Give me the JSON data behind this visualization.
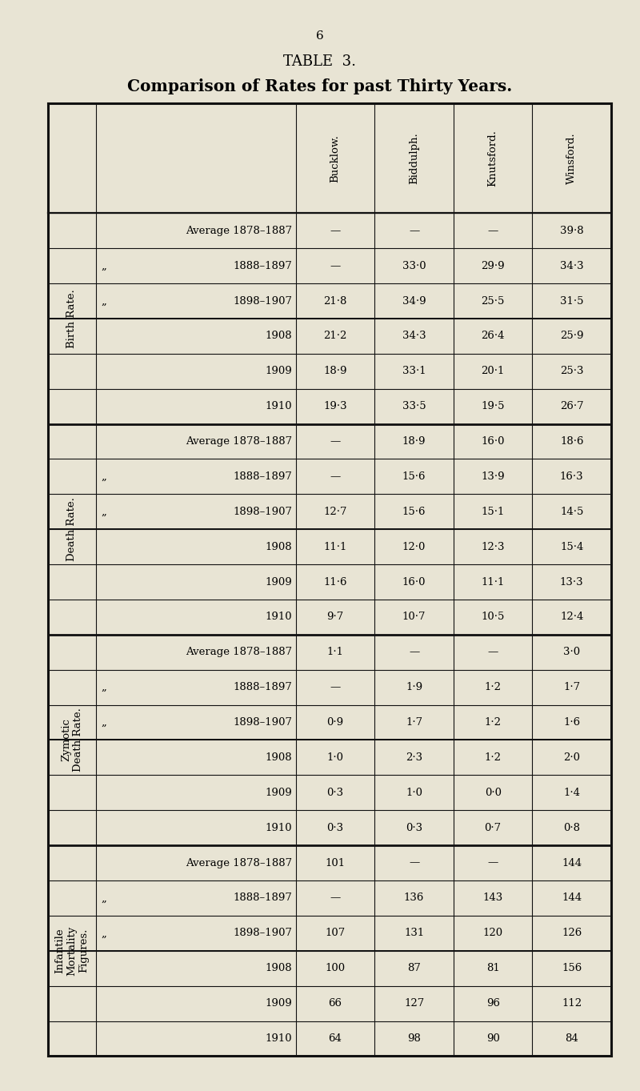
{
  "page_number": "6",
  "table_title": "TABLE  3.",
  "table_subtitle": "Comparison of Rates for past Thirty Years.",
  "bg_color": "#e8e4d4",
  "table_bg": "#f5f2e8",
  "col_headers": [
    "Bucklow.",
    "Biddulph.",
    "Knutsford.",
    "Winsford."
  ],
  "row_sections": [
    {
      "section_label": "Birth Rate.",
      "subsections": [
        {
          "label": "Average 1878–1887",
          "prefix": "",
          "values": [
            "—",
            "—",
            "—",
            "39·8"
          ]
        },
        {
          "label": "1888–1897",
          "prefix": "„",
          "values": [
            "—",
            "33·0",
            "29·9",
            "34·3"
          ]
        },
        {
          "label": "1898–1907",
          "prefix": "„",
          "values": [
            "21·8",
            "34·9",
            "25·5",
            "31·5"
          ]
        }
      ],
      "year_rows": [
        {
          "label": "1908",
          "values": [
            "21·2",
            "34·3",
            "26·4",
            "25·9"
          ]
        },
        {
          "label": "1909",
          "values": [
            "18·9",
            "33·1",
            "20·1",
            "25·3"
          ]
        },
        {
          "label": "1910",
          "values": [
            "19·3",
            "33·5",
            "19·5",
            "26·7"
          ]
        }
      ]
    },
    {
      "section_label": "Death Rate.",
      "subsections": [
        {
          "label": "Average 1878–1887",
          "prefix": "",
          "values": [
            "—",
            "18·9",
            "16·0",
            "18·6"
          ]
        },
        {
          "label": "1888–1897",
          "prefix": "„",
          "values": [
            "—",
            "15·6",
            "13·9",
            "16·3"
          ]
        },
        {
          "label": "1898–1907",
          "prefix": "„",
          "values": [
            "12·7",
            "15·6",
            "15·1",
            "14·5"
          ]
        }
      ],
      "year_rows": [
        {
          "label": "1908",
          "values": [
            "11·1",
            "12·0",
            "12·3",
            "15·4"
          ]
        },
        {
          "label": "1909",
          "values": [
            "11·6",
            "16·0",
            "11·1",
            "13·3"
          ]
        },
        {
          "label": "1910",
          "values": [
            "9·7",
            "10·7",
            "10·5",
            "12·4"
          ]
        }
      ]
    },
    {
      "section_label": "Zymotic\nDeath Rate.",
      "subsections": [
        {
          "label": "Average 1878–1887",
          "prefix": "",
          "values": [
            "1·1",
            "—",
            "—",
            "3·0"
          ]
        },
        {
          "label": "1888–1897",
          "prefix": "„",
          "values": [
            "—",
            "1·9",
            "1·2",
            "1·7"
          ]
        },
        {
          "label": "1898–1907",
          "prefix": "„",
          "values": [
            "0·9",
            "1·7",
            "1·2",
            "1·6"
          ]
        }
      ],
      "year_rows": [
        {
          "label": "1908",
          "values": [
            "1·0",
            "2·3",
            "1·2",
            "2·0"
          ]
        },
        {
          "label": "1909",
          "values": [
            "0·3",
            "1·0",
            "0·0",
            "1·4"
          ]
        },
        {
          "label": "1910",
          "values": [
            "0·3",
            "0·3",
            "0·7",
            "0·8"
          ]
        }
      ]
    },
    {
      "section_label": "Infantile\nMortality\nFigures.",
      "subsections": [
        {
          "label": "Average 1878–1887",
          "prefix": "",
          "values": [
            "101",
            "—",
            "—",
            "144"
          ]
        },
        {
          "label": "1888–1897",
          "prefix": "„",
          "values": [
            "—",
            "136",
            "143",
            "144"
          ]
        },
        {
          "label": "1898–1907",
          "prefix": "„",
          "values": [
            "107",
            "131",
            "120",
            "126"
          ]
        }
      ],
      "year_rows": [
        {
          "label": "1908",
          "values": [
            "100",
            "87",
            "81",
            "156"
          ]
        },
        {
          "label": "1909",
          "values": [
            "66",
            "127",
            "96",
            "112"
          ]
        },
        {
          "label": "1910",
          "values": [
            "64",
            "98",
            "90",
            "84"
          ]
        }
      ]
    }
  ]
}
